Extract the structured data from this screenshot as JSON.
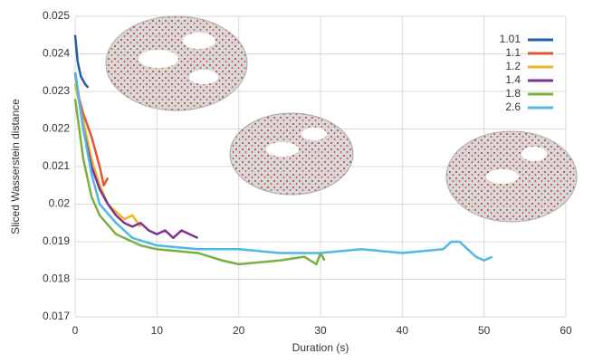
{
  "chart_data": {
    "type": "line",
    "xlabel": "Duration (s)",
    "ylabel": "Sliced Wasserstein distance",
    "xlim": [
      0,
      60
    ],
    "xticks": [
      0,
      10,
      20,
      30,
      40,
      50,
      60
    ],
    "ylim": [
      0.017,
      0.025
    ],
    "yticks": [
      0.017,
      0.018,
      0.019,
      0.02,
      0.021,
      0.022,
      0.023,
      0.024,
      0.025
    ],
    "grid": true,
    "legend": "upper right",
    "series": [
      {
        "name": "1.01",
        "color": "#1f5fa8",
        "x": [
          0,
          0.3,
          0.7,
          1.2,
          1.6
        ],
        "values": [
          0.0245,
          0.0238,
          0.0234,
          0.0232,
          0.0231
        ]
      },
      {
        "name": "1.1",
        "color": "#e0572a",
        "x": [
          0,
          0.5,
          1,
          2,
          3,
          3.5,
          4
        ],
        "values": [
          0.0235,
          0.0228,
          0.0224,
          0.0218,
          0.021,
          0.0205,
          0.0207
        ]
      },
      {
        "name": "1.2",
        "color": "#f0b323",
        "x": [
          0,
          1,
          2,
          3,
          4,
          5,
          6,
          7,
          8
        ],
        "values": [
          0.0232,
          0.0222,
          0.0212,
          0.0205,
          0.02,
          0.0198,
          0.0196,
          0.0197,
          0.0194
        ]
      },
      {
        "name": "1.4",
        "color": "#7b3294",
        "x": [
          0,
          1,
          2,
          3,
          4,
          5,
          6,
          7,
          8,
          9,
          10,
          11,
          12,
          13,
          14,
          15
        ],
        "values": [
          0.0235,
          0.022,
          0.021,
          0.0204,
          0.02,
          0.0197,
          0.0195,
          0.0194,
          0.0195,
          0.0193,
          0.0192,
          0.0193,
          0.0191,
          0.0193,
          0.0192,
          0.0191
        ]
      },
      {
        "name": "1.8",
        "color": "#79b040",
        "x": [
          0,
          1,
          2,
          3,
          5,
          8,
          10,
          15,
          18,
          20,
          25,
          28,
          29.5,
          30,
          30.5
        ],
        "values": [
          0.0228,
          0.0212,
          0.0202,
          0.0197,
          0.0192,
          0.0189,
          0.0188,
          0.0187,
          0.0185,
          0.0184,
          0.0185,
          0.0186,
          0.0184,
          0.0187,
          0.0185
        ]
      },
      {
        "name": "2.6",
        "color": "#4fb8e6",
        "x": [
          0,
          1,
          2,
          3,
          5,
          7,
          10,
          15,
          20,
          25,
          30,
          35,
          40,
          45,
          46,
          47,
          48,
          49,
          50,
          51
        ],
        "values": [
          0.0235,
          0.022,
          0.0208,
          0.02,
          0.0195,
          0.0191,
          0.0189,
          0.0188,
          0.0188,
          0.0187,
          0.0187,
          0.0188,
          0.0187,
          0.0188,
          0.019,
          0.019,
          0.0188,
          0.0186,
          0.0185,
          0.0186
        ]
      }
    ]
  }
}
